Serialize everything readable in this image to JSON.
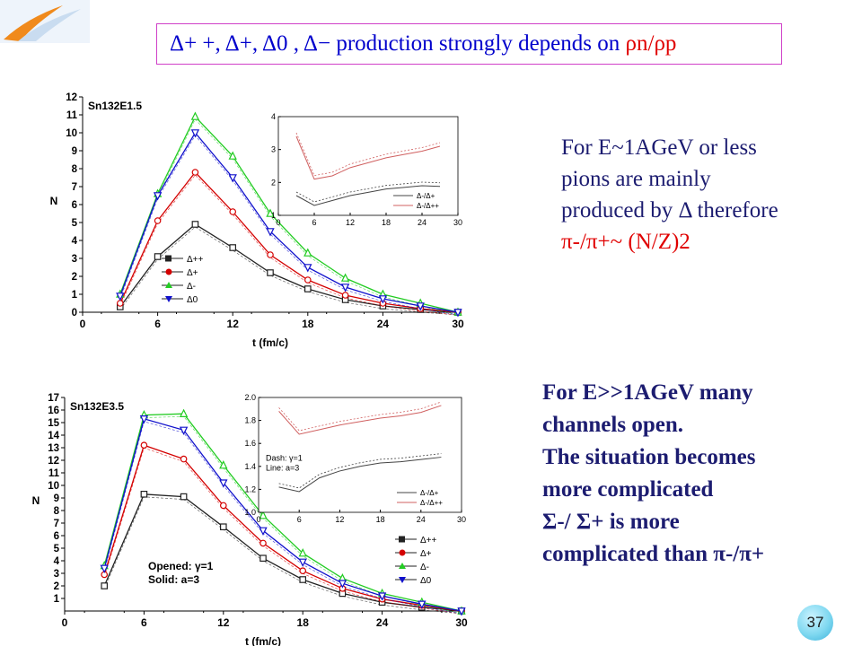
{
  "title": {
    "particles": "Δ+ +, Δ+, Δ0 , Δ−",
    "text": "production strongly depends on",
    "ratio_num": "ρn",
    "ratio_den": "ρp"
  },
  "para1": {
    "lines": [
      "For E~1AGeV or less",
      "pions are mainly",
      "produced  by Δ  therefore"
    ],
    "formula": "π-/π+~ (N/Z)2"
  },
  "para2": {
    "lines": [
      "For  E>>1AGeV many",
      "channels open.",
      "The situation becomes",
      " more complicated",
      "Σ-/ Σ+  is more",
      "complicated than π-/π+"
    ]
  },
  "page_number": "37",
  "colors": {
    "text_blue": "#0000cc",
    "text_dark": "#1c1c70",
    "accent_red": "#e00000",
    "title_border": "#d040c8",
    "series_black": "#222222",
    "series_red": "#d40000",
    "series_green": "#22cc22",
    "series_blue": "#1010cc"
  },
  "chart_data": [
    {
      "type": "line",
      "panel_label": "Sn132E1.5",
      "xlabel": "t (fm/c)",
      "ylabel": "N",
      "xlim": [
        0,
        30
      ],
      "ylim": [
        0,
        12
      ],
      "xticks": [
        0,
        6,
        12,
        18,
        24,
        30
      ],
      "yticks": [
        0,
        1,
        2,
        3,
        4,
        5,
        6,
        7,
        8,
        9,
        10,
        11,
        12
      ],
      "x": [
        3,
        6,
        9,
        12,
        15,
        18,
        21,
        24,
        27,
        30
      ],
      "series": [
        {
          "name": "Δ++",
          "marker": "square",
          "color": "#222222",
          "values": [
            0.3,
            3.1,
            4.9,
            3.6,
            2.2,
            1.3,
            0.7,
            0.35,
            0.15,
            0.0
          ]
        },
        {
          "name": "Δ+",
          "marker": "circle",
          "color": "#d40000",
          "values": [
            0.5,
            5.1,
            7.8,
            5.6,
            3.2,
            1.8,
            0.95,
            0.5,
            0.2,
            0.0
          ]
        },
        {
          "name": "Δ-",
          "marker": "triangle",
          "color": "#22cc22",
          "values": [
            1.0,
            6.6,
            10.9,
            8.7,
            5.5,
            3.3,
            1.9,
            1.0,
            0.5,
            0.0
          ]
        },
        {
          "name": "Δ0",
          "marker": "triangle-down",
          "color": "#1010cc",
          "values": [
            0.9,
            6.5,
            10.0,
            7.5,
            4.5,
            2.5,
            1.4,
            0.75,
            0.35,
            0.0
          ]
        }
      ],
      "legend": {
        "placement": "bottom-left",
        "entries": [
          "Δ++",
          "Δ+",
          "Δ-",
          "Δ0"
        ]
      },
      "inset": {
        "xlim": [
          0,
          30
        ],
        "ylim": [
          1,
          4
        ],
        "xticks": [
          0,
          6,
          12,
          18,
          24,
          30
        ],
        "yticks": [
          1,
          2,
          3,
          4
        ],
        "x": [
          3,
          6,
          9,
          12,
          15,
          18,
          21,
          24,
          27
        ],
        "series": [
          {
            "name": "Δ-/Δ+",
            "color": "#444444",
            "values": [
              1.6,
              1.3,
              1.45,
              1.6,
              1.7,
              1.8,
              1.85,
              1.9,
              1.88
            ]
          },
          {
            "name": "Δ-/Δ++",
            "color": "#d06060",
            "values": [
              3.4,
              2.1,
              2.2,
              2.45,
              2.6,
              2.75,
              2.85,
              2.95,
              3.1
            ]
          }
        ],
        "legend_entries": [
          "Δ-/Δ+",
          "Δ-/Δ++"
        ]
      }
    },
    {
      "type": "line",
      "panel_label": "Sn132E3.5",
      "xlabel": "t (fm/c)",
      "ylabel": "N",
      "xlim": [
        0,
        30
      ],
      "ylim": [
        0,
        17
      ],
      "xticks": [
        0,
        6,
        12,
        18,
        24,
        30
      ],
      "yticks": [
        1,
        2,
        3,
        4,
        5,
        6,
        7,
        8,
        9,
        10,
        11,
        12,
        13,
        14,
        15,
        16,
        17
      ],
      "x": [
        3,
        6,
        9,
        12,
        15,
        18,
        21,
        24,
        27,
        30
      ],
      "series": [
        {
          "name": "Δ++",
          "marker": "square",
          "color": "#222222",
          "values": [
            2.0,
            9.3,
            9.1,
            6.7,
            4.2,
            2.5,
            1.4,
            0.7,
            0.3,
            0.0
          ]
        },
        {
          "name": "Δ+",
          "marker": "circle",
          "color": "#d40000",
          "values": [
            2.9,
            13.2,
            12.1,
            8.4,
            5.4,
            3.2,
            1.8,
            0.95,
            0.45,
            0.0
          ]
        },
        {
          "name": "Δ-",
          "marker": "triangle",
          "color": "#22cc22",
          "values": [
            3.6,
            15.6,
            15.7,
            11.6,
            7.6,
            4.6,
            2.6,
            1.4,
            0.7,
            0.0
          ]
        },
        {
          "name": "Δ0",
          "marker": "triangle-down",
          "color": "#1010cc",
          "values": [
            3.4,
            15.3,
            14.4,
            10.2,
            6.4,
            3.9,
            2.2,
            1.2,
            0.55,
            0.0
          ]
        }
      ],
      "legend": {
        "placement": "bottom-right",
        "entries": [
          "Δ++",
          "Δ+",
          "Δ-",
          "Δ0"
        ]
      },
      "annotation_lines": [
        "Opened: γ=1",
        "Solid: a=3"
      ],
      "inset": {
        "xlim": [
          0,
          30
        ],
        "ylim": [
          1.0,
          2.0
        ],
        "xticks": [
          0,
          6,
          12,
          18,
          24,
          30
        ],
        "yticks": [
          1.0,
          1.2,
          1.4,
          1.6,
          1.8,
          2.0
        ],
        "x": [
          3,
          6,
          9,
          12,
          15,
          18,
          21,
          24,
          27
        ],
        "series": [
          {
            "name": "Δ-/Δ+",
            "color": "#444444",
            "values": [
              1.22,
              1.18,
              1.3,
              1.36,
              1.4,
              1.43,
              1.44,
              1.46,
              1.48
            ]
          },
          {
            "name": "Δ-/Δ++",
            "color": "#d06060",
            "values": [
              1.88,
              1.68,
              1.72,
              1.76,
              1.79,
              1.82,
              1.84,
              1.87,
              1.93
            ]
          }
        ],
        "annotation_lines": [
          "Dash: γ=1",
          "Line: a=3"
        ],
        "legend_entries": [
          "Δ-/Δ+",
          "Δ-/Δ++"
        ]
      }
    }
  ]
}
